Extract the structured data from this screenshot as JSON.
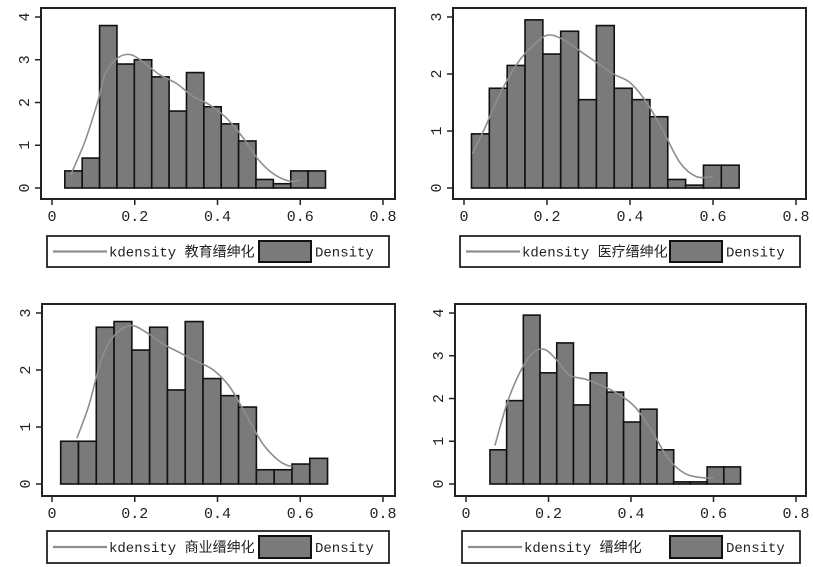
{
  "colors": {
    "bar_fill": "#7a7a7a",
    "bar_stroke": "#111111",
    "curve": "#8e8e8e",
    "frame": "#222222"
  },
  "chart_data": [
    {
      "type": "bar",
      "subtype": "histogram-with-kdensity",
      "title": "",
      "xlabel": "",
      "ylabel": "",
      "xlim": [
        0,
        0.8
      ],
      "ylim": [
        0,
        4
      ],
      "xticks": [
        "0",
        "0.2",
        "0.4",
        "0.6",
        "0.8"
      ],
      "xtick_values": [
        0,
        0.2,
        0.4,
        0.6,
        0.8
      ],
      "yticks": [
        "0",
        "1",
        "2",
        "3",
        "4"
      ],
      "ytick_values": [
        0,
        1,
        2,
        3,
        4
      ],
      "bin_start": 0.031,
      "bin_width": 0.042,
      "values": [
        0.4,
        0.7,
        3.8,
        2.9,
        3.0,
        2.6,
        1.8,
        2.7,
        1.9,
        1.5,
        1.1,
        0.2,
        0.1,
        0.4,
        0.4
      ],
      "kdensity": {
        "x": [
          0.045,
          0.08,
          0.11,
          0.13,
          0.16,
          0.19,
          0.22,
          0.26,
          0.3,
          0.34,
          0.38,
          0.42,
          0.46,
          0.5,
          0.54,
          0.58,
          0.6
        ],
        "y": [
          0.3,
          1.1,
          2.0,
          2.7,
          3.05,
          3.12,
          2.95,
          2.65,
          2.45,
          2.15,
          1.95,
          1.65,
          1.2,
          0.65,
          0.3,
          0.15,
          0.2
        ]
      },
      "legend": {
        "curve_label": "kdensity 教育缙绅化",
        "bar_label": "Density",
        "position": "bottom"
      }
    },
    {
      "type": "bar",
      "subtype": "histogram-with-kdensity",
      "title": "",
      "xlabel": "",
      "ylabel": "",
      "xlim": [
        0,
        0.8
      ],
      "ylim": [
        0,
        3
      ],
      "xticks": [
        "0",
        "0.2",
        "0.4",
        "0.6",
        "0.8"
      ],
      "xtick_values": [
        0,
        0.2,
        0.4,
        0.6,
        0.8
      ],
      "yticks": [
        "0",
        "1",
        "2",
        "3"
      ],
      "ytick_values": [
        0,
        1,
        2,
        3
      ],
      "bin_start": 0.018,
      "bin_width": 0.043,
      "values": [
        0.95,
        1.75,
        2.15,
        2.95,
        2.35,
        2.75,
        1.55,
        2.85,
        1.75,
        1.55,
        1.25,
        0.15,
        0.05,
        0.4,
        0.4
      ],
      "kdensity": {
        "x": [
          0.02,
          0.05,
          0.09,
          0.13,
          0.16,
          0.2,
          0.24,
          0.28,
          0.32,
          0.36,
          0.4,
          0.44,
          0.48,
          0.52,
          0.56,
          0.6
        ],
        "y": [
          0.6,
          1.05,
          1.7,
          2.2,
          2.45,
          2.68,
          2.6,
          2.4,
          2.2,
          2.0,
          1.85,
          1.5,
          1.0,
          0.45,
          0.2,
          0.2
        ]
      },
      "legend": {
        "curve_label": "kdensity 医疗缙绅化",
        "bar_label": "Density",
        "position": "bottom"
      }
    },
    {
      "type": "bar",
      "subtype": "histogram-with-kdensity",
      "title": "",
      "xlabel": "",
      "ylabel": "",
      "xlim": [
        0,
        0.8
      ],
      "ylim": [
        0,
        3
      ],
      "xticks": [
        "0",
        "0.2",
        "0.4",
        "0.6",
        "0.8"
      ],
      "xtick_values": [
        0,
        0.2,
        0.4,
        0.6,
        0.8
      ],
      "yticks": [
        "0",
        "1",
        "2",
        "3"
      ],
      "ytick_values": [
        0,
        1,
        2,
        3
      ],
      "bin_start": 0.021,
      "bin_width": 0.043,
      "values": [
        0.75,
        0.75,
        2.75,
        2.85,
        2.35,
        2.75,
        1.65,
        2.85,
        1.85,
        1.55,
        1.35,
        0.25,
        0.25,
        0.35,
        0.45
      ],
      "kdensity": {
        "x": [
          0.06,
          0.09,
          0.12,
          0.15,
          0.19,
          0.23,
          0.27,
          0.31,
          0.35,
          0.39,
          0.43,
          0.47,
          0.51,
          0.55,
          0.58
        ],
        "y": [
          0.8,
          1.4,
          2.2,
          2.6,
          2.78,
          2.65,
          2.45,
          2.3,
          2.15,
          2.0,
          1.7,
          1.2,
          0.7,
          0.4,
          0.3
        ]
      },
      "legend": {
        "curve_label": "kdensity 商业缙绅化",
        "bar_label": "Density",
        "position": "bottom"
      }
    },
    {
      "type": "bar",
      "subtype": "histogram-with-kdensity",
      "title": "",
      "xlabel": "",
      "ylabel": "",
      "xlim": [
        0,
        0.8
      ],
      "ylim": [
        0,
        4
      ],
      "xticks": [
        "0",
        "0.2",
        "0.4",
        "0.6",
        "0.8"
      ],
      "xtick_values": [
        0,
        0.2,
        0.4,
        0.6,
        0.8
      ],
      "yticks": [
        "0",
        "1",
        "2",
        "3",
        "4"
      ],
      "ytick_values": [
        0,
        1,
        2,
        3,
        4
      ],
      "bin_start": 0.058,
      "bin_width": 0.0405,
      "values": [
        0.8,
        1.95,
        3.95,
        2.6,
        3.3,
        1.85,
        2.6,
        2.15,
        1.45,
        1.75,
        0.8,
        0.05,
        0.05,
        0.4,
        0.4
      ],
      "kdensity": {
        "x": [
          0.07,
          0.1,
          0.13,
          0.16,
          0.19,
          0.22,
          0.25,
          0.29,
          0.33,
          0.37,
          0.41,
          0.45,
          0.49,
          0.53,
          0.57,
          0.6
        ],
        "y": [
          0.9,
          1.9,
          2.6,
          3.05,
          3.15,
          2.9,
          2.55,
          2.45,
          2.3,
          2.1,
          1.8,
          1.25,
          0.6,
          0.25,
          0.15,
          0.15
        ]
      },
      "legend": {
        "curve_label": "kdensity 缙绅化",
        "bar_label": "Density",
        "position": "bottom"
      }
    }
  ]
}
